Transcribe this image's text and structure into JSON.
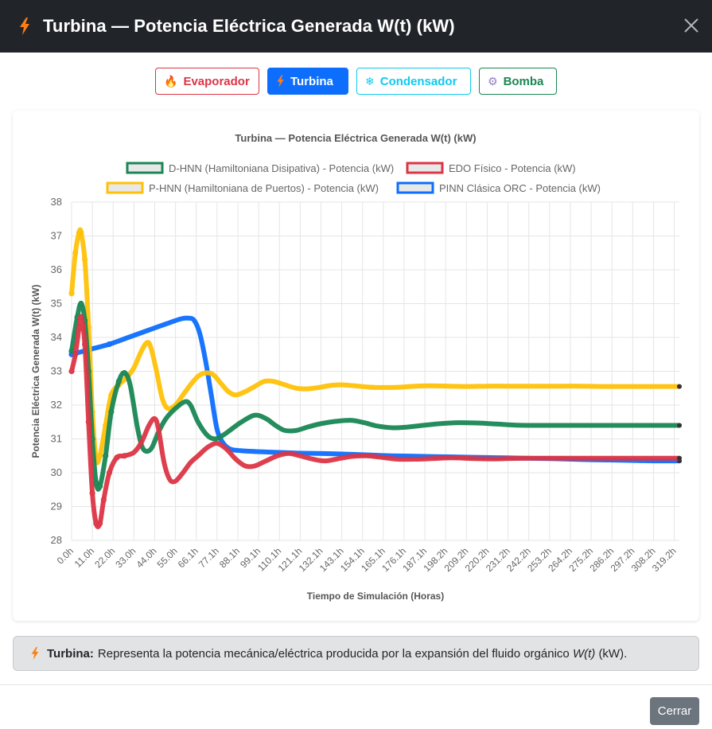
{
  "modal": {
    "title": "Turbina — Potencia Eléctrica Generada W(t) (kW)",
    "close_label": "×"
  },
  "tabs": [
    {
      "label": "Evaporador",
      "icon": "fire-icon",
      "active": false,
      "color": "#dc3545"
    },
    {
      "label": "Turbina",
      "icon": "bolt-icon",
      "active": true,
      "color": "#0d6efd"
    },
    {
      "label": "Condensador",
      "icon": "snowflake-icon",
      "active": false,
      "color": "#0dcaf0"
    },
    {
      "label": "Bomba",
      "icon": "gear-icon",
      "active": false,
      "color": "#198754"
    }
  ],
  "chart_data": {
    "type": "line",
    "title": "Turbina — Potencia Eléctrica Generada W(t) (kW)",
    "xlabel": "Tiempo de Simulación (Horas)",
    "ylabel": "Potencia Eléctrica Generada W(t) (kW)",
    "ylim": [
      28,
      38
    ],
    "xlim": [
      0,
      322
    ],
    "yticks": [
      28,
      29,
      30,
      31,
      32,
      33,
      34,
      35,
      36,
      37,
      38
    ],
    "xticks": [
      "0.0h",
      "11.0h",
      "22.0h",
      "33.0h",
      "44.0h",
      "55.0h",
      "66.1h",
      "77.1h",
      "88.1h",
      "99.1h",
      "110.1h",
      "121.1h",
      "132.1h",
      "143.1h",
      "154.1h",
      "165.1h",
      "176.1h",
      "187.1h",
      "198.2h",
      "209.2h",
      "220.2h",
      "231.2h",
      "242.2h",
      "253.2h",
      "264.2h",
      "275.2h",
      "286.2h",
      "297.2h",
      "308.2h",
      "319.2h"
    ],
    "legend_position": "top",
    "grid": true,
    "series": [
      {
        "name": "D-HNN (Hamiltoniana Disipativa) - Potencia (kW)",
        "color": "#198754",
        "points": [
          [
            0,
            33.6
          ],
          [
            3,
            34.6
          ],
          [
            5,
            35.0
          ],
          [
            7,
            34.5
          ],
          [
            9,
            33.0
          ],
          [
            11,
            31.0
          ],
          [
            13,
            29.7
          ],
          [
            15,
            29.6
          ],
          [
            18,
            30.5
          ],
          [
            21,
            31.8
          ],
          [
            25,
            32.7
          ],
          [
            28,
            32.95
          ],
          [
            31,
            32.6
          ],
          [
            35,
            31.3
          ],
          [
            38,
            30.7
          ],
          [
            42,
            30.7
          ],
          [
            46,
            31.2
          ],
          [
            50,
            31.6
          ],
          [
            55,
            31.9
          ],
          [
            60,
            32.1
          ],
          [
            63,
            32.0
          ],
          [
            67,
            31.5
          ],
          [
            72,
            31.1
          ],
          [
            76,
            31.0
          ],
          [
            80,
            31.1
          ],
          [
            85,
            31.3
          ],
          [
            90,
            31.5
          ],
          [
            97,
            31.7
          ],
          [
            103,
            31.6
          ],
          [
            108,
            31.4
          ],
          [
            113,
            31.25
          ],
          [
            119,
            31.25
          ],
          [
            125,
            31.35
          ],
          [
            132,
            31.45
          ],
          [
            140,
            31.52
          ],
          [
            148,
            31.55
          ],
          [
            155,
            31.48
          ],
          [
            162,
            31.38
          ],
          [
            170,
            31.33
          ],
          [
            178,
            31.35
          ],
          [
            186,
            31.4
          ],
          [
            195,
            31.45
          ],
          [
            205,
            31.48
          ],
          [
            215,
            31.47
          ],
          [
            225,
            31.44
          ],
          [
            235,
            31.41
          ],
          [
            245,
            31.4
          ],
          [
            255,
            31.4
          ],
          [
            265,
            31.4
          ],
          [
            275,
            31.4
          ],
          [
            285,
            31.4
          ],
          [
            295,
            31.4
          ],
          [
            305,
            31.4
          ],
          [
            313,
            31.4
          ],
          [
            322,
            31.4
          ]
        ]
      },
      {
        "name": "EDO Físico - Potencia (kW)",
        "color": "#dc3545",
        "points": [
          [
            0,
            33.0
          ],
          [
            2,
            33.5
          ],
          [
            4,
            34.3
          ],
          [
            5,
            34.6
          ],
          [
            7,
            33.8
          ],
          [
            9,
            31.5
          ],
          [
            11,
            29.4
          ],
          [
            13,
            28.5
          ],
          [
            15,
            28.5
          ],
          [
            17,
            29.2
          ],
          [
            20,
            30.0
          ],
          [
            24,
            30.45
          ],
          [
            28,
            30.5
          ],
          [
            33,
            30.6
          ],
          [
            37,
            30.9
          ],
          [
            41,
            31.4
          ],
          [
            44,
            31.6
          ],
          [
            46,
            31.3
          ],
          [
            49,
            30.3
          ],
          [
            52,
            29.8
          ],
          [
            55,
            29.75
          ],
          [
            59,
            30.0
          ],
          [
            63,
            30.3
          ],
          [
            67,
            30.5
          ],
          [
            72,
            30.75
          ],
          [
            77,
            30.87
          ],
          [
            82,
            30.7
          ],
          [
            87,
            30.4
          ],
          [
            92,
            30.2
          ],
          [
            97,
            30.2
          ],
          [
            103,
            30.35
          ],
          [
            109,
            30.5
          ],
          [
            115,
            30.57
          ],
          [
            121,
            30.5
          ],
          [
            128,
            30.4
          ],
          [
            134,
            30.35
          ],
          [
            140,
            30.4
          ],
          [
            148,
            30.48
          ],
          [
            156,
            30.5
          ],
          [
            165,
            30.45
          ],
          [
            173,
            30.4
          ],
          [
            182,
            30.4
          ],
          [
            192,
            30.42
          ],
          [
            202,
            30.44
          ],
          [
            212,
            30.42
          ],
          [
            222,
            30.41
          ],
          [
            232,
            30.42
          ],
          [
            242,
            30.43
          ],
          [
            252,
            30.43
          ],
          [
            262,
            30.43
          ],
          [
            272,
            30.43
          ],
          [
            282,
            30.43
          ],
          [
            292,
            30.43
          ],
          [
            302,
            30.43
          ],
          [
            312,
            30.43
          ],
          [
            322,
            30.43
          ]
        ]
      },
      {
        "name": "P-HNN (Hamiltoniana de Puertos) - Potencia (kW)",
        "color": "#ffc107",
        "points": [
          [
            0,
            35.3
          ],
          [
            2,
            36.5
          ],
          [
            4,
            37.1
          ],
          [
            5,
            37.1
          ],
          [
            7,
            36.3
          ],
          [
            9,
            34.3
          ],
          [
            11,
            31.8
          ],
          [
            13,
            30.4
          ],
          [
            15,
            30.5
          ],
          [
            18,
            31.4
          ],
          [
            21,
            32.3
          ],
          [
            25,
            32.6
          ],
          [
            29,
            32.8
          ],
          [
            33,
            33.1
          ],
          [
            37,
            33.6
          ],
          [
            40,
            33.85
          ],
          [
            42,
            33.7
          ],
          [
            45,
            33.0
          ],
          [
            48,
            32.2
          ],
          [
            51,
            31.9
          ],
          [
            55,
            32.0
          ],
          [
            59,
            32.3
          ],
          [
            63,
            32.6
          ],
          [
            67,
            32.85
          ],
          [
            71,
            32.95
          ],
          [
            75,
            32.9
          ],
          [
            79,
            32.65
          ],
          [
            83,
            32.4
          ],
          [
            87,
            32.3
          ],
          [
            92,
            32.4
          ],
          [
            97,
            32.55
          ],
          [
            102,
            32.7
          ],
          [
            107,
            32.7
          ],
          [
            113,
            32.6
          ],
          [
            119,
            32.5
          ],
          [
            125,
            32.48
          ],
          [
            131,
            32.52
          ],
          [
            137,
            32.58
          ],
          [
            143,
            32.6
          ],
          [
            150,
            32.57
          ],
          [
            158,
            32.53
          ],
          [
            166,
            32.52
          ],
          [
            174,
            32.53
          ],
          [
            182,
            32.56
          ],
          [
            190,
            32.57
          ],
          [
            200,
            32.56
          ],
          [
            210,
            32.55
          ],
          [
            220,
            32.56
          ],
          [
            230,
            32.56
          ],
          [
            240,
            32.56
          ],
          [
            250,
            32.56
          ],
          [
            260,
            32.56
          ],
          [
            270,
            32.56
          ],
          [
            280,
            32.55
          ],
          [
            290,
            32.55
          ],
          [
            300,
            32.55
          ],
          [
            310,
            32.55
          ],
          [
            322,
            32.55
          ]
        ]
      },
      {
        "name": "PINN Clásica ORC - Potencia (kW)",
        "color": "#0d6efd",
        "points": [
          [
            0,
            33.5
          ],
          [
            10,
            33.65
          ],
          [
            20,
            33.8
          ],
          [
            30,
            34.0
          ],
          [
            40,
            34.2
          ],
          [
            50,
            34.4
          ],
          [
            58,
            34.55
          ],
          [
            62,
            34.57
          ],
          [
            65,
            34.5
          ],
          [
            68,
            34.1
          ],
          [
            71,
            33.3
          ],
          [
            74,
            32.3
          ],
          [
            77,
            31.3
          ],
          [
            80,
            30.9
          ],
          [
            84,
            30.7
          ],
          [
            90,
            30.65
          ],
          [
            100,
            30.62
          ],
          [
            110,
            30.6
          ],
          [
            120,
            30.58
          ],
          [
            130,
            30.57
          ],
          [
            140,
            30.56
          ],
          [
            150,
            30.54
          ],
          [
            160,
            30.52
          ],
          [
            170,
            30.5
          ],
          [
            180,
            30.49
          ],
          [
            190,
            30.48
          ],
          [
            200,
            30.47
          ],
          [
            210,
            30.46
          ],
          [
            220,
            30.45
          ],
          [
            230,
            30.44
          ],
          [
            240,
            30.43
          ],
          [
            250,
            30.42
          ],
          [
            260,
            30.41
          ],
          [
            270,
            30.39
          ],
          [
            280,
            30.38
          ],
          [
            290,
            30.37
          ],
          [
            300,
            30.36
          ],
          [
            310,
            30.35
          ],
          [
            322,
            30.35
          ]
        ]
      }
    ]
  },
  "info": {
    "label": "Turbina:",
    "text_before": "Representa la potencia mecánica/eléctrica producida por la expansión del fluido orgánico",
    "formula": "W(t)",
    "text_after": "(kW)."
  },
  "footer": {
    "close_button": "Cerrar"
  }
}
